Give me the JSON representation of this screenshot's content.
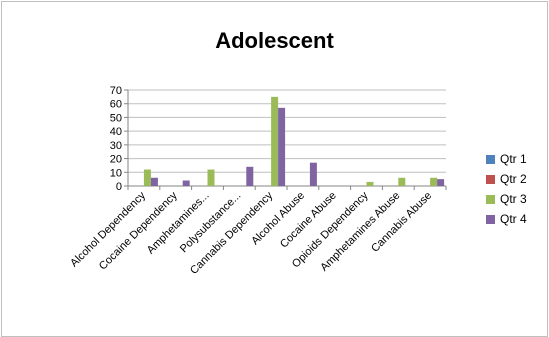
{
  "chart_data": {
    "type": "bar",
    "title": "Adolescent",
    "xlabel": "",
    "ylabel": "",
    "ylim": [
      0,
      70
    ],
    "yticks": [
      0,
      10,
      20,
      30,
      40,
      50,
      60,
      70
    ],
    "grid": true,
    "legend_position": "right",
    "categories": [
      "Alcohol Dependency",
      "Cocaine Dependency",
      "Amphetamines...",
      "Polysubstance...",
      "Cannabis Dependency",
      "Alcohol Abuse",
      "Cocaine Abuse",
      "Opioids Dependency",
      "Amphetamines Abuse",
      "Cannabis Abuse"
    ],
    "series": [
      {
        "name": "Qtr 1",
        "color": "#4f81bd",
        "values": [
          0,
          0,
          0,
          0,
          0,
          0,
          0,
          0,
          0,
          0
        ]
      },
      {
        "name": "Qtr 2",
        "color": "#c0504d",
        "values": [
          0,
          0,
          0,
          0,
          0,
          0,
          0,
          0,
          0,
          0
        ]
      },
      {
        "name": "Qtr 3",
        "color": "#9bbb59",
        "values": [
          12,
          0,
          12,
          0,
          65,
          0,
          0,
          3,
          6,
          6
        ]
      },
      {
        "name": "Qtr 4",
        "color": "#8064a2",
        "values": [
          6,
          4,
          0,
          14,
          57,
          17,
          0,
          0,
          0,
          5
        ]
      }
    ]
  }
}
